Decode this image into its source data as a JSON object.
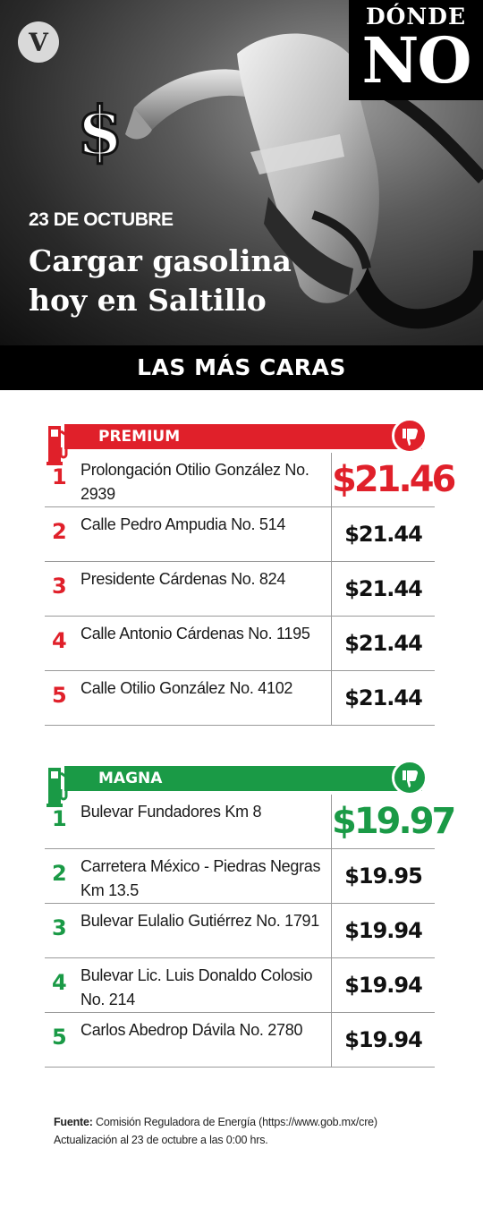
{
  "hero": {
    "brand_top": "DÓNDE",
    "brand_bottom": "NO",
    "logo": "V",
    "date": "23 DE OCTUBRE",
    "title": "Cargar gasolina hoy en Saltillo",
    "dollar_symbol": "$"
  },
  "section": {
    "title": "LAS MÁS CARAS"
  },
  "premium": {
    "label": "PREMIUM",
    "color": "#e0202a",
    "icon": "fuel-pump-icon",
    "thumb_icon": "thumbs-down-icon",
    "rows": [
      {
        "rank": "1",
        "address": "Prolongación Otilio González No. 2939",
        "price": "$21.46"
      },
      {
        "rank": "2",
        "address": "Calle Pedro Ampudia No. 514",
        "price": "$21.44"
      },
      {
        "rank": "3",
        "address": "Presidente Cárdenas No. 824",
        "price": "$21.44"
      },
      {
        "rank": "4",
        "address": "Calle Antonio Cárdenas No. 1195",
        "price": "$21.44"
      },
      {
        "rank": "5",
        "address": "Calle Otilio González No. 4102",
        "price": "$21.44"
      }
    ]
  },
  "magna": {
    "label": "MAGNA",
    "color": "#1a9a46",
    "icon": "fuel-pump-icon",
    "thumb_icon": "thumbs-down-icon",
    "rows": [
      {
        "rank": "1",
        "address": "Bulevar Fundadores Km 8",
        "price": "$19.97"
      },
      {
        "rank": "2",
        "address": "Carretera México - Piedras Negras Km 13.5",
        "price": "$19.95"
      },
      {
        "rank": "3",
        "address": "Bulevar Eulalio Gutiérrez No. 1791",
        "price": "$19.94"
      },
      {
        "rank": "4",
        "address": "Bulevar Lic. Luis Donaldo Colosio No. 214",
        "price": "$19.94"
      },
      {
        "rank": "5",
        "address": "Carlos Abedrop Dávila No. 2780",
        "price": "$19.94"
      }
    ]
  },
  "footer": {
    "source_label": "Fuente:",
    "source_text": " Comisión Reguladora de Energía (https://www.gob.mx/cre)",
    "update_text": "Actualización al 23 de octubre a las 0:00 hrs."
  }
}
